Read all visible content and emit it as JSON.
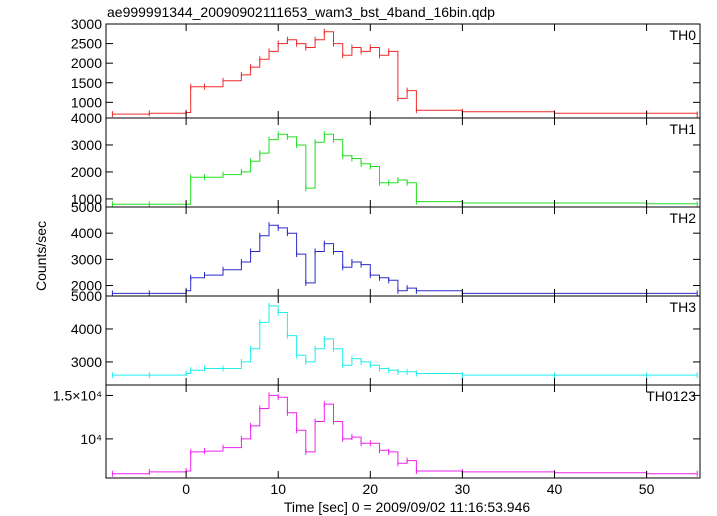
{
  "title": "ae999991344_20090902111653_wam3_bst_4band_16bin.qdp",
  "chart_data": {
    "type": "line",
    "xlabel": "Time [sec] 0 = 2009/09/02 11:16:53.946",
    "ylabel": "Counts/sec",
    "xlim": [
      -8.7,
      55.8
    ],
    "xticks": [
      "0",
      "10",
      "20",
      "30",
      "40",
      "50"
    ],
    "grid": false,
    "x": [
      -8,
      -4,
      0,
      0.5,
      2,
      4,
      6,
      7,
      8,
      9,
      10,
      11,
      12,
      13,
      14,
      15,
      16,
      17,
      18,
      19,
      20,
      21,
      22,
      23,
      24,
      25,
      30,
      40,
      50,
      55.5
    ],
    "panels": [
      {
        "name": "TH0",
        "color": "#ee2b2b",
        "ylim": [
          600,
          3000
        ],
        "yticks": [
          {
            "v": 1000,
            "t": "1000"
          },
          {
            "v": 1500,
            "t": "1500"
          },
          {
            "v": 2000,
            "t": "2000"
          },
          {
            "v": 2500,
            "t": "2500"
          },
          {
            "v": 3000,
            "t": "3000"
          }
        ],
        "values": [
          700,
          720,
          740,
          1400,
          1400,
          1550,
          1700,
          1900,
          2100,
          2300,
          2500,
          2600,
          2500,
          2400,
          2600,
          2800,
          2500,
          2200,
          2400,
          2300,
          2400,
          2200,
          2300,
          1100,
          1300,
          800,
          760,
          720,
          720,
          690
        ]
      },
      {
        "name": "TH1",
        "color": "#22dd22",
        "ylim": [
          700,
          4000
        ],
        "yticks": [
          {
            "v": 1000,
            "t": "1000"
          },
          {
            "v": 2000,
            "t": "2000"
          },
          {
            "v": 3000,
            "t": "3000"
          },
          {
            "v": 4000,
            "t": "4000"
          }
        ],
        "values": [
          800,
          800,
          800,
          1800,
          1800,
          1900,
          2000,
          2400,
          2700,
          3200,
          3400,
          3300,
          3000,
          1400,
          3100,
          3400,
          3200,
          2600,
          2500,
          2300,
          2200,
          1600,
          1600,
          1700,
          1600,
          900,
          850,
          850,
          820,
          800
        ]
      },
      {
        "name": "TH2",
        "color": "#2b2bcc",
        "ylim": [
          1600,
          5000
        ],
        "yticks": [
          {
            "v": 2000,
            "t": "2000"
          },
          {
            "v": 3000,
            "t": "3000"
          },
          {
            "v": 4000,
            "t": "4000"
          },
          {
            "v": 5000,
            "t": "5000"
          }
        ],
        "values": [
          1700,
          1700,
          1800,
          2300,
          2400,
          2600,
          2900,
          3300,
          3900,
          4300,
          4200,
          4000,
          3200,
          2100,
          3300,
          3600,
          3300,
          2700,
          2900,
          2800,
          2400,
          2300,
          2200,
          1800,
          1900,
          1800,
          1700,
          1700,
          1700,
          1700
        ]
      },
      {
        "name": "TH3",
        "color": "#22eeee",
        "ylim": [
          2300,
          5000
        ],
        "yticks": [
          {
            "v": 3000,
            "t": "3000"
          },
          {
            "v": 4000,
            "t": "4000"
          },
          {
            "v": 5000,
            "t": "5000"
          }
        ],
        "values": [
          2600,
          2600,
          2650,
          2750,
          2800,
          2800,
          3000,
          3400,
          4200,
          4700,
          4500,
          3800,
          3200,
          3000,
          3400,
          3700,
          3400,
          2900,
          3100,
          3000,
          2900,
          2800,
          2750,
          2700,
          2700,
          2650,
          2600,
          2600,
          2600,
          2600
        ]
      },
      {
        "name": "TH0123",
        "color": "#ee22ee",
        "ylim": [
          5500,
          16200
        ],
        "yticks": [
          {
            "v": 15000,
            "t": "1.5×10⁴"
          },
          {
            "v": 10000,
            "t": "10⁴"
          }
        ],
        "values": [
          6000,
          6200,
          6300,
          8500,
          8600,
          9000,
          10000,
          11500,
          13500,
          15000,
          14800,
          13000,
          11000,
          8500,
          12000,
          14000,
          12000,
          10000,
          10200,
          9500,
          9500,
          8700,
          8500,
          7200,
          7500,
          6300,
          6200,
          6100,
          6000,
          6000
        ]
      }
    ]
  }
}
